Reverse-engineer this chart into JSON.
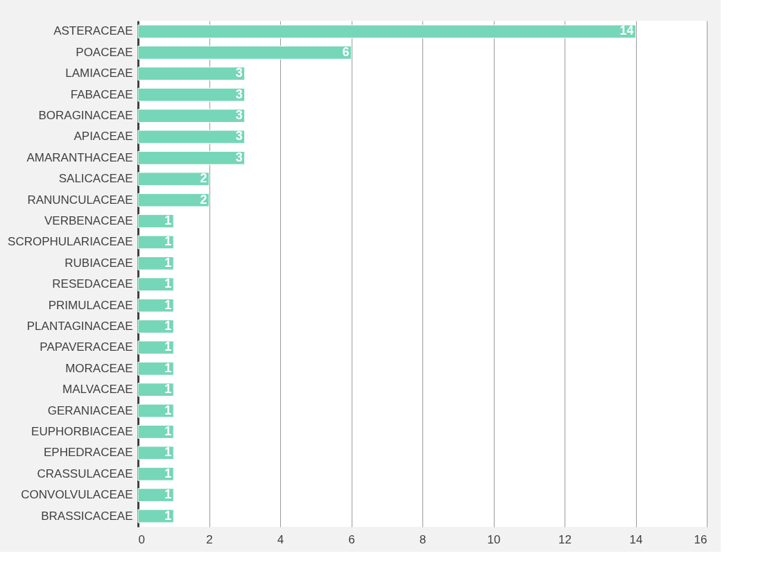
{
  "chart_data": {
    "type": "bar",
    "orientation": "horizontal",
    "categories": [
      "ASTERACEAE",
      "POACEAE",
      "LAMIACEAE",
      "FABACEAE",
      "BORAGINACEAE",
      "APIACEAE",
      "AMARANTHACEAE",
      "SALICACEAE",
      "RANUNCULACEAE",
      "VERBENACEAE",
      "SCROPHULARIACEAE",
      "RUBIACEAE",
      "RESEDACEAE",
      "PRIMULACEAE",
      "PLANTAGINACEAE",
      "PAPAVERACEAE",
      "MORACEAE",
      "MALVACEAE",
      "GERANIACEAE",
      "EUPHORBIACEAE",
      "EPHEDRACEAE",
      "CRASSULACEAE",
      "CONVOLVULACEAE",
      "BRASSICACEAE"
    ],
    "values": [
      14,
      6,
      3,
      3,
      3,
      3,
      3,
      2,
      2,
      1,
      1,
      1,
      1,
      1,
      1,
      1,
      1,
      1,
      1,
      1,
      1,
      1,
      1,
      1
    ],
    "color": "#76d6b8",
    "xlim": [
      0,
      16
    ],
    "xticks": [
      0,
      2,
      4,
      6,
      8,
      10,
      12,
      14,
      16
    ],
    "grid": "x",
    "data_labels": true
  }
}
